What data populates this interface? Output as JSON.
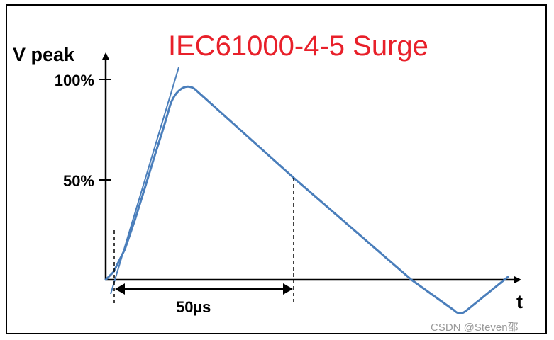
{
  "title": "IEC61000-4-5 Surge",
  "y_axis_label": "V peak",
  "x_axis_label": "t",
  "y_ticks": [
    "100%",
    "50%"
  ],
  "time_annotation": "50µs",
  "watermark": "CSDN @Steven邵",
  "colors": {
    "title": "#e8202a",
    "waveform": "#4a7ebb",
    "axes": "#000000"
  }
}
